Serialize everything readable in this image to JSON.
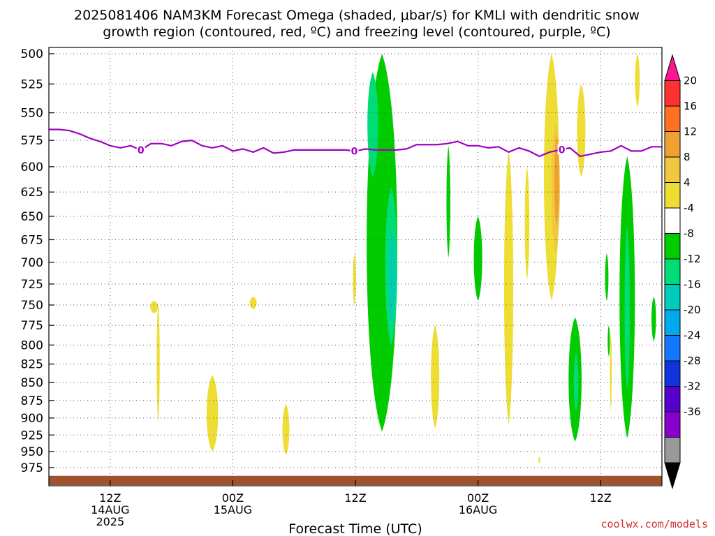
{
  "chart_data": {
    "type": "heatmap",
    "title_line1": "2025081406 NAM3KM Forecast Omega (shaded, μbar/s) for KMLI with dendritic snow",
    "title_line2": "growth region (contoured, red, ºC) and freezing level (contoured, purple, ºC)",
    "xlabel": "Forecast Time (UTC)",
    "credit": "coolwx.com/models",
    "x_range_hours": [
      6,
      66
    ],
    "y_axis": {
      "scale": "log-pressure",
      "range": [
        1000,
        500
      ],
      "ticks": [
        500,
        525,
        550,
        575,
        600,
        625,
        650,
        675,
        700,
        725,
        750,
        775,
        800,
        825,
        850,
        875,
        900,
        925,
        950,
        975
      ]
    },
    "x_ticks": [
      {
        "hour": 12,
        "lines": [
          "12Z",
          "14AUG",
          "2025"
        ]
      },
      {
        "hour": 24,
        "lines": [
          "00Z",
          "15AUG"
        ]
      },
      {
        "hour": 36,
        "lines": [
          "12Z"
        ]
      },
      {
        "hour": 48,
        "lines": [
          "00Z",
          "16AUG"
        ]
      },
      {
        "hour": 60,
        "lines": [
          "12Z"
        ]
      }
    ],
    "grid": true,
    "colorbar": {
      "position": "right",
      "labels": [
        "20",
        "16",
        "12",
        "8",
        "4",
        "-4",
        "-8",
        "-12",
        "-16",
        "-20",
        "-24",
        "-28",
        "-32",
        "-36"
      ],
      "colors": [
        "#ff1493",
        "#ff3030",
        "#ff7020",
        "#f0a030",
        "#f0c840",
        "#eedd33",
        "#ffffff",
        "#00cc00",
        "#00dd77",
        "#00ccbb",
        "#00aaee",
        "#1177ff",
        "#1133dd",
        "#5500cc",
        "#8800cc",
        "#999999",
        "#000000"
      ]
    },
    "freezing_level": {
      "color": "#a000c0",
      "contour_label": "0",
      "label_hours": [
        15,
        35.9,
        56.2
      ],
      "hours": [
        6,
        7,
        8,
        9,
        10,
        11,
        12,
        13,
        14,
        15,
        16,
        17,
        18,
        19,
        20,
        21,
        22,
        23,
        24,
        25,
        26,
        27,
        28,
        29,
        30,
        31,
        32,
        33,
        34,
        35,
        36,
        37,
        38,
        39,
        40,
        41,
        42,
        43,
        44,
        45,
        46,
        47,
        48,
        49,
        50,
        51,
        52,
        53,
        54,
        55,
        56,
        57,
        58,
        59,
        60,
        61,
        62,
        63,
        64,
        65,
        66
      ],
      "pressure": [
        565,
        565,
        566,
        569,
        573,
        576,
        580,
        582,
        580,
        584,
        578,
        578,
        580,
        576,
        575,
        580,
        582,
        580,
        585,
        583,
        586,
        582,
        587,
        586,
        584,
        584,
        584,
        584,
        584,
        584,
        585,
        583,
        584,
        584,
        584,
        583,
        579,
        579,
        579,
        578,
        576,
        580,
        580,
        582,
        581,
        586,
        582,
        585,
        590,
        586,
        584,
        582,
        590,
        588,
        586,
        585,
        580,
        585,
        585,
        581,
        581
      ]
    },
    "omega_regions": [
      {
        "level": 4,
        "color": "#eedd33",
        "hour": 16.3,
        "p_top": 745,
        "p_bot": 760,
        "half_width_hours": 0.5
      },
      {
        "level": 4,
        "color": "#eedd33",
        "hour": 16.7,
        "p_top": 748,
        "p_bot": 905,
        "half_width_hours": 0.2
      },
      {
        "level": 4,
        "color": "#eedd33",
        "hour": 22.0,
        "p_top": 840,
        "p_bot": 950,
        "half_width_hours": 0.75
      },
      {
        "level": 4,
        "color": "#eedd33",
        "hour": 26.0,
        "p_top": 740,
        "p_bot": 755,
        "half_width_hours": 0.45
      },
      {
        "level": 4,
        "color": "#eedd33",
        "hour": 29.2,
        "p_top": 880,
        "p_bot": 955,
        "half_width_hours": 0.45
      },
      {
        "level": 4,
        "color": "#eedd33",
        "hour": 35.9,
        "p_top": 690,
        "p_bot": 750,
        "half_width_hours": 0.2
      },
      {
        "level": 4,
        "color": "#eedd33",
        "hour": 43.8,
        "p_top": 775,
        "p_bot": 915,
        "half_width_hours": 0.55
      },
      {
        "level": 4,
        "color": "#eedd33",
        "hour": 51.0,
        "p_top": 585,
        "p_bot": 910,
        "half_width_hours": 0.6
      },
      {
        "level": 4,
        "color": "#eedd33",
        "hour": 54.0,
        "p_top": 958,
        "p_bot": 968,
        "half_width_hours": 0.12
      },
      {
        "level": 4,
        "color": "#eedd33",
        "hour": 58.1,
        "p_top": 525,
        "p_bot": 610,
        "half_width_hours": 0.55
      },
      {
        "level": 4,
        "color": "#eedd33",
        "hour": 61.0,
        "p_top": 785,
        "p_bot": 890,
        "half_width_hours": 0.12
      },
      {
        "level": 4,
        "color": "#eedd33",
        "hour": 63.6,
        "p_top": 500,
        "p_bot": 545,
        "half_width_hours": 0.3
      },
      {
        "level": 4,
        "color": "#eedd33",
        "hour": 55.2,
        "p_top": 500,
        "p_bot": 745,
        "half_width_hours": 1.0
      },
      {
        "level": 8,
        "color": "#f0c840",
        "hour": 55.6,
        "p_top": 560,
        "p_bot": 690,
        "half_width_hours": 0.55
      },
      {
        "level": 12,
        "color": "#f0a030",
        "hour": 55.7,
        "p_top": 570,
        "p_bot": 660,
        "half_width_hours": 0.3
      },
      {
        "level": 4,
        "color": "#eedd33",
        "hour": 52.8,
        "p_top": 600,
        "p_bot": 720,
        "half_width_hours": 0.3
      },
      {
        "level": -4,
        "color": "#00cc00",
        "hour": 38.6,
        "p_top": 500,
        "p_bot": 920,
        "half_width_hours": 2.0
      },
      {
        "level": -8,
        "color": "#00dd77",
        "hour": 37.7,
        "p_top": 515,
        "p_bot": 610,
        "half_width_hours": 0.7
      },
      {
        "level": -8,
        "color": "#00dd77",
        "hour": 39.5,
        "p_top": 620,
        "p_bot": 800,
        "half_width_hours": 0.8
      },
      {
        "level": -12,
        "color": "#00ccbb",
        "hour": 39.6,
        "p_top": 665,
        "p_bot": 775,
        "half_width_hours": 0.4
      },
      {
        "level": -4,
        "color": "#00cc00",
        "hour": 45.1,
        "p_top": 580,
        "p_bot": 695,
        "half_width_hours": 0.25
      },
      {
        "level": -4,
        "color": "#00cc00",
        "hour": 48.0,
        "p_top": 650,
        "p_bot": 745,
        "half_width_hours": 0.55
      },
      {
        "level": -4,
        "color": "#00cc00",
        "hour": 57.5,
        "p_top": 765,
        "p_bot": 935,
        "half_width_hours": 0.85
      },
      {
        "level": -8,
        "color": "#00dd77",
        "hour": 57.6,
        "p_top": 810,
        "p_bot": 890,
        "half_width_hours": 0.3
      },
      {
        "level": -4,
        "color": "#00cc00",
        "hour": 60.6,
        "p_top": 690,
        "p_bot": 745,
        "half_width_hours": 0.22
      },
      {
        "level": -4,
        "color": "#00cc00",
        "hour": 60.8,
        "p_top": 775,
        "p_bot": 815,
        "half_width_hours": 0.15
      },
      {
        "level": -4,
        "color": "#00cc00",
        "hour": 62.6,
        "p_top": 590,
        "p_bot": 930,
        "half_width_hours": 1.0
      },
      {
        "level": -8,
        "color": "#00dd77",
        "hour": 62.6,
        "p_top": 660,
        "p_bot": 860,
        "half_width_hours": 0.35
      },
      {
        "level": -4,
        "color": "#00cc00",
        "hour": 65.2,
        "p_top": 740,
        "p_bot": 795,
        "half_width_hours": 0.3
      }
    ],
    "ground": {
      "color": "#a0522d",
      "p_top": 988
    }
  }
}
